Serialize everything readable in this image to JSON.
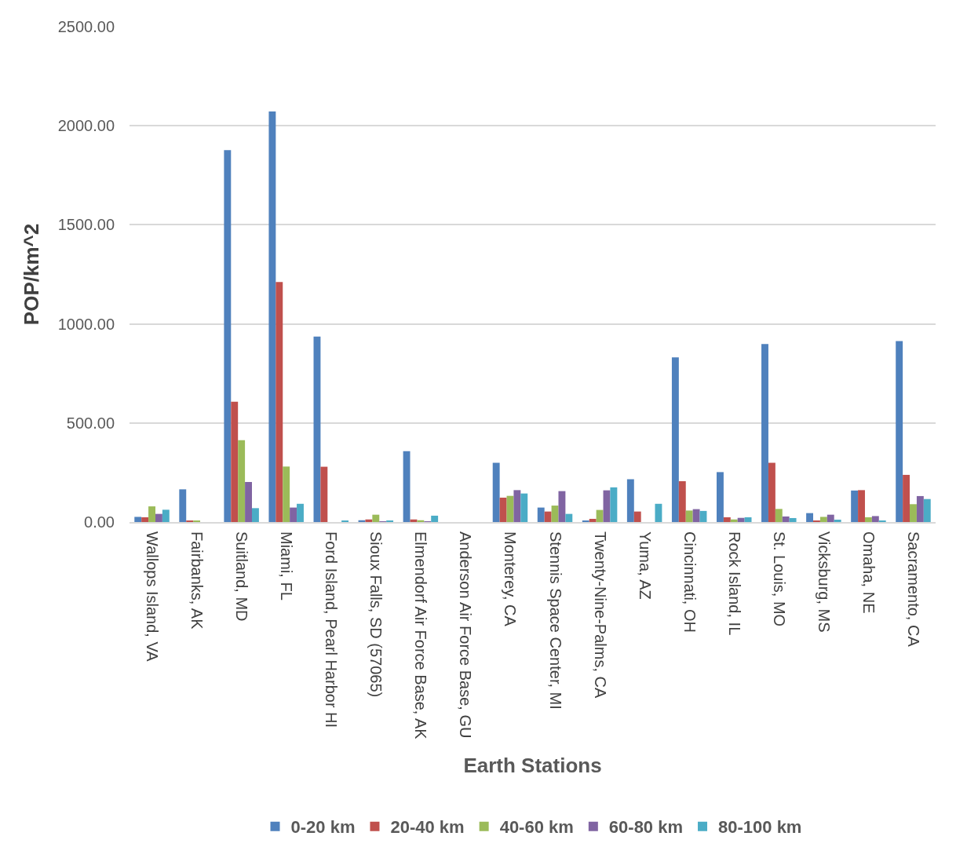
{
  "chart_data": {
    "type": "bar",
    "xlabel": "Earth Stations",
    "ylabel": "POP/km^2",
    "categories": [
      "Wallops Island, VA",
      "Fairbanks, AK",
      "Suitland, MD",
      "Miami, FL",
      "Ford Island, Pearl Harbor HI",
      "Sioux Falls, SD (57065)",
      "Elmendorf Air Force Base, AK",
      "Anderson Air Force Base, GU",
      "Monterey, CA",
      "Stennis Space Center, MI",
      "Twenty-Nine-Palms, CA",
      "Yuma, AZ",
      "Cincinnati, OH",
      "Rock Island, IL",
      "St. Louis, MO",
      "Vicksburg, MS",
      "Omaha, NE",
      "Sacramento, CA"
    ],
    "series": [
      {
        "name": "0-20 km",
        "color": "#4f81bd",
        "values": [
          26,
          165,
          1877,
          2072,
          936,
          9,
          358,
          0,
          299,
          73,
          8,
          216,
          831,
          252,
          898,
          45,
          159,
          913
        ]
      },
      {
        "name": "20-40 km",
        "color": "#c0504d",
        "values": [
          24,
          4,
          607,
          1211,
          279,
          13,
          13,
          0,
          123,
          53,
          16,
          53,
          206,
          24,
          299,
          5,
          161,
          238
        ]
      },
      {
        "name": "40-60 km",
        "color": "#9bbb59",
        "values": [
          79,
          4,
          413,
          280,
          0,
          37,
          9,
          0,
          132,
          83,
          61,
          0,
          58,
          13,
          66,
          26,
          24,
          90
        ]
      },
      {
        "name": "60-80 km",
        "color": "#8064a2",
        "values": [
          41,
          0,
          202,
          73,
          0,
          2,
          2,
          0,
          161,
          156,
          160,
          0,
          65,
          21,
          28,
          37,
          30,
          131
        ]
      },
      {
        "name": "80-100 km",
        "color": "#4bacc6",
        "values": [
          62,
          0,
          70,
          92,
          5,
          5,
          32,
          0,
          144,
          41,
          175,
          92,
          56,
          24,
          20,
          12,
          8,
          116
        ]
      }
    ],
    "ylim": [
      0,
      2500
    ],
    "yticks": [
      {
        "value": 0,
        "label": "0.00"
      },
      {
        "value": 500,
        "label": "500.00"
      },
      {
        "value": 1000,
        "label": "1000.00"
      },
      {
        "value": 1500,
        "label": "1500.00"
      },
      {
        "value": 2000,
        "label": "2000.00"
      },
      {
        "value": 2500,
        "label": "2500.00"
      }
    ],
    "grid": "y",
    "legend": "bottom"
  }
}
